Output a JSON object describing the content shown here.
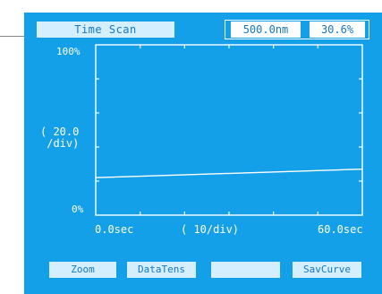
{
  "header": {
    "title": "Time Scan",
    "wavelength": "500.0nm",
    "reading": "30.6%"
  },
  "plot": {
    "y_top_label": "100%",
    "y_bottom_label": "0%",
    "y_div_label_line1": "( 20.0",
    "y_div_label_line2": " /div)",
    "x_start_label": "0.0sec",
    "x_div_label": "( 10/div)",
    "x_end_label": "60.0sec",
    "colors": {
      "background": "#14a0e8",
      "trace": "#ffffff",
      "panel": "#d4efff"
    }
  },
  "chart_data": {
    "type": "line",
    "x": [
      0,
      60
    ],
    "series": [
      {
        "values": [
          22.0,
          27.0
        ]
      }
    ],
    "xlim": [
      0,
      60
    ],
    "ylim": [
      0,
      100
    ],
    "xlabel": "( 10/div)",
    "ylabel": "( 20.0 /div)",
    "x_tick_labels": [
      "0.0sec",
      "60.0sec"
    ],
    "y_tick_labels": [
      "0%",
      "100%"
    ],
    "grid": false
  },
  "softkeys": {
    "zoom": "Zoom",
    "data_tens": "DataTens",
    "blank": "",
    "sav_curve": "SavCurve"
  }
}
